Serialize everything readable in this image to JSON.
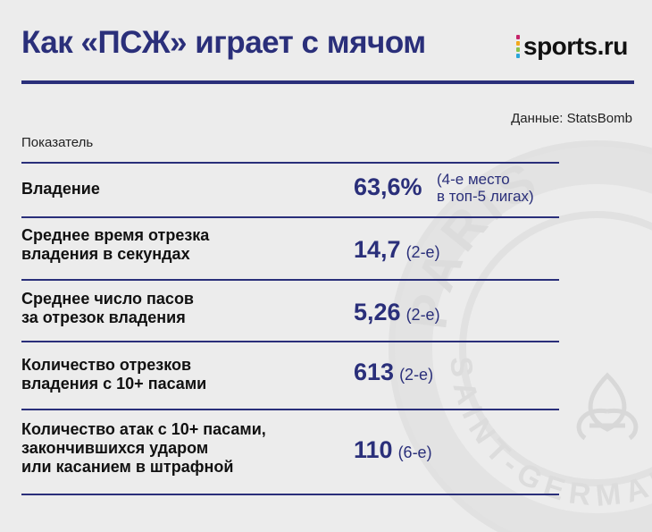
{
  "header": {
    "title": "Как «ПСЖ» играет с мячом",
    "logo_text": "sports.ru",
    "logo_colors": [
      "#c6246a",
      "#f2a81d",
      "#8bc34a",
      "#2aa6d9"
    ]
  },
  "source": "Данные: StatsBomb",
  "column_header": "Показатель",
  "rows": [
    {
      "label_lines": [
        "Владение"
      ],
      "value": "63,6%",
      "note_lines": [
        "(4-е место",
        "в топ-5 лигах)"
      ]
    },
    {
      "label_lines": [
        "Среднее время отрезка",
        "владения в секундах"
      ],
      "value": "14,7",
      "note": "(2-е)"
    },
    {
      "label_lines": [
        "Среднее число пасов",
        "за отрезок владения"
      ],
      "value": "5,26",
      "note": "(2-е)"
    },
    {
      "label_lines": [
        "Количество отрезков",
        "владения с 10+ пасами"
      ],
      "value": "613",
      "note": "(2-е)"
    },
    {
      "label_lines": [
        "Количество атак с 10+ пасами,",
        "закончившихся ударом",
        "или касанием в штрафной"
      ],
      "value": "110",
      "note": "(6-е)"
    }
  ],
  "watermark": {
    "top_text": "PARIS",
    "bottom_text": "SAINT-GERMAIN",
    "emblem": "fleur-de-lis-icon"
  },
  "colors": {
    "accent": "#2a2f7a",
    "background": "#ececec"
  }
}
